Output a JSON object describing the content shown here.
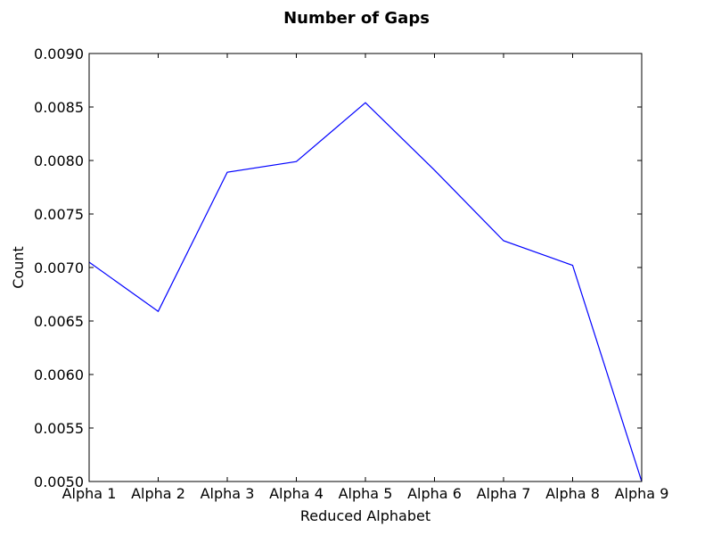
{
  "chart_data": {
    "type": "line",
    "title": "Number of Gaps",
    "xlabel": "Reduced Alphabet",
    "ylabel": "Count",
    "categories": [
      "Alpha 1",
      "Alpha 2",
      "Alpha 3",
      "Alpha 4",
      "Alpha 5",
      "Alpha 6",
      "Alpha 7",
      "Alpha 8",
      "Alpha 9"
    ],
    "series": [
      {
        "values": [
          0.00705,
          0.00659,
          0.00789,
          0.00799,
          0.00854,
          0.00791,
          0.00725,
          0.00702,
          0.005
        ],
        "color": "#0000ff"
      }
    ],
    "ylim": [
      0.005,
      0.009
    ],
    "yticks": [
      "0.0050",
      "0.0055",
      "0.0060",
      "0.0065",
      "0.0070",
      "0.0075",
      "0.0080",
      "0.0085",
      "0.0090"
    ],
    "grid": false,
    "legend": "none"
  }
}
